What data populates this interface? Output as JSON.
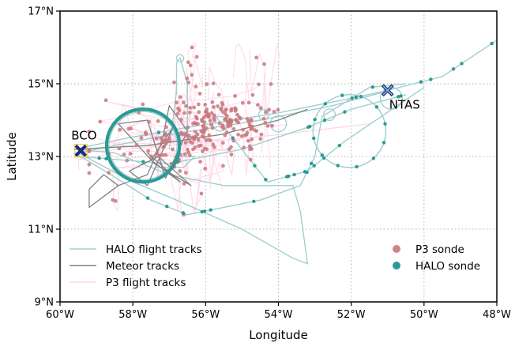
{
  "chart_data": {
    "type": "map",
    "title": "",
    "xlabel": "Longitude",
    "ylabel": "Latitude",
    "xlim": [
      -60,
      -48
    ],
    "ylim": [
      9,
      17
    ],
    "x_ticks": [
      {
        "value": -60,
        "label": "60°W"
      },
      {
        "value": -58,
        "label": "58°W"
      },
      {
        "value": -56,
        "label": "56°W"
      },
      {
        "value": -54,
        "label": "54°W"
      },
      {
        "value": -52,
        "label": "52°W"
      },
      {
        "value": -50,
        "label": "50°W"
      },
      {
        "value": -48,
        "label": "48°W"
      }
    ],
    "y_ticks": [
      {
        "value": 9,
        "label": "9°N"
      },
      {
        "value": 11,
        "label": "11°N"
      },
      {
        "value": 13,
        "label": "13°N"
      },
      {
        "value": 15,
        "label": "15°N"
      },
      {
        "value": 17,
        "label": "17°N"
      }
    ],
    "grid": true,
    "grid_style": "dotted",
    "legend_left": [
      {
        "label": "HALO flight tracks",
        "kind": "line",
        "color": "#9fcfcf"
      },
      {
        "label": "Meteor tracks",
        "kind": "line",
        "color": "#808080"
      },
      {
        "label": "P3 flight tracks",
        "kind": "line",
        "color": "#ffd6e8"
      }
    ],
    "legend_right": [
      {
        "label": "P3 sonde",
        "kind": "marker",
        "color": "#c8777e"
      },
      {
        "label": "HALO sonde",
        "kind": "marker",
        "color": "#2a9a94"
      }
    ],
    "sites": [
      {
        "label": "BCO",
        "lon": -59.43,
        "lat": 13.16,
        "label_position": "above-left"
      },
      {
        "label": "NTAS",
        "lon": -51.0,
        "lat": 14.82,
        "label_position": "below-right"
      }
    ],
    "halo_circle": {
      "lon": -57.72,
      "lat": 13.3,
      "radius_deg": 1.0
    },
    "ntas_circle": {
      "lon": -52.05,
      "lat": 13.7,
      "radius_deg": 1.0
    },
    "halo_tracks": [
      [
        [
          -59.6,
          13.2
        ],
        [
          -58.2,
          13.5
        ],
        [
          -56.5,
          13.8
        ],
        [
          -54.0,
          14.2
        ],
        [
          -52.0,
          14.6
        ],
        [
          -51.0,
          14.82
        ],
        [
          -49.5,
          15.2
        ],
        [
          -48.0,
          16.2
        ]
      ],
      [
        [
          -59.5,
          13.1
        ],
        [
          -57.0,
          13.6
        ],
        [
          -54.5,
          14.0
        ],
        [
          -52.5,
          14.4
        ],
        [
          -51.0,
          14.8
        ]
      ],
      [
        [
          -59.6,
          13.2
        ],
        [
          -58.5,
          13.1
        ],
        [
          -57.0,
          12.5
        ],
        [
          -55.5,
          12.2
        ],
        [
          -53.6,
          12.2
        ],
        [
          -53.4,
          11.5
        ],
        [
          -53.2,
          10.05
        ],
        [
          -53.6,
          10.2
        ],
        [
          -55.0,
          11.0
        ],
        [
          -56.8,
          11.8
        ],
        [
          -58.0,
          12.3
        ],
        [
          -59.5,
          13.1
        ]
      ],
      [
        [
          -59.6,
          13.1
        ],
        [
          -58.6,
          12.5
        ],
        [
          -57.5,
          11.8
        ],
        [
          -56.5,
          11.4
        ],
        [
          -55.5,
          11.6
        ],
        [
          -54.5,
          11.8
        ],
        [
          -53.4,
          12.2
        ],
        [
          -53.0,
          13.0
        ],
        [
          -52.8,
          14.1
        ],
        [
          -51.5,
          14.9
        ],
        [
          -50.5,
          15.0
        ]
      ],
      [
        [
          -57.0,
          13.2
        ],
        [
          -56.8,
          14.8
        ],
        [
          -56.8,
          15.6
        ],
        [
          -56.7,
          15.7
        ],
        [
          -56.5,
          15.0
        ],
        [
          -56.5,
          13.4
        ]
      ],
      [
        [
          -55.8,
          14.2
        ],
        [
          -54.3,
          12.3
        ],
        [
          -53.2,
          12.6
        ],
        [
          -52.2,
          13.4
        ],
        [
          -50.0,
          14.9
        ]
      ],
      [
        [
          -59.5,
          13.0
        ],
        [
          -57.0,
          12.8
        ],
        [
          -55.0,
          13.2
        ],
        [
          -53.2,
          13.8
        ],
        [
          -52.0,
          14.3
        ],
        [
          -50.5,
          14.7
        ]
      ],
      [
        [
          -57.4,
          12.7
        ],
        [
          -56.6,
          12.7
        ],
        [
          -56.3,
          13.0
        ],
        [
          -56.9,
          13.0
        ]
      ]
    ],
    "meteor_tracks": [
      [
        [
          -59.2,
          12.1
        ],
        [
          -59.2,
          11.6
        ],
        [
          -58.4,
          12.2
        ],
        [
          -57.6,
          12.5
        ],
        [
          -57.2,
          13.4
        ],
        [
          -57.0,
          14.4
        ],
        [
          -56.5,
          13.7
        ],
        [
          -57.1,
          12.4
        ],
        [
          -57.6,
          14.0
        ],
        [
          -58.4,
          13.9
        ],
        [
          -57.4,
          12.8
        ],
        [
          -56.4,
          12.2
        ],
        [
          -57.3,
          13.0
        ],
        [
          -58.1,
          12.6
        ],
        [
          -57.6,
          12.2
        ],
        [
          -56.9,
          13.8
        ],
        [
          -57.5,
          12.9
        ],
        [
          -56.7,
          12.3
        ],
        [
          -57.6,
          13.1
        ]
      ],
      [
        [
          -59.2,
          12.1
        ],
        [
          -58.8,
          12.5
        ],
        [
          -58.4,
          12.2
        ]
      ],
      [
        [
          -59.6,
          13.2
        ],
        [
          -57.6,
          13.3
        ],
        [
          -55.6,
          13.6
        ],
        [
          -54.0,
          14.0
        ],
        [
          -53.2,
          14.3
        ]
      ]
    ],
    "p3_track_segments": 58,
    "p3_sonde_count": 250,
    "halo_sonde_count": 80
  }
}
